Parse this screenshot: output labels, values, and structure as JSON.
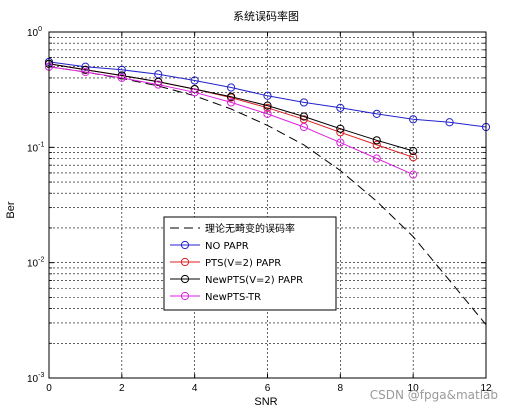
{
  "chart_data": {
    "type": "line",
    "title": "系统误码率图",
    "xlabel": "SNR",
    "ylabel": "Ber",
    "xlim": [
      0,
      12
    ],
    "ylim": [
      0.001,
      1
    ],
    "yscale": "log",
    "grid": true,
    "legend_position": "center",
    "x_ticks": [
      0,
      2,
      4,
      6,
      8,
      10,
      12
    ],
    "x_tick_labels": [
      "0",
      "2",
      "4",
      "6",
      "8",
      "10",
      "12"
    ],
    "y_ticks": [
      0.001,
      0.01,
      0.1,
      1
    ],
    "y_tick_labels": [
      {
        "base": "10",
        "exp": "-3"
      },
      {
        "base": "10",
        "exp": "-2"
      },
      {
        "base": "10",
        "exp": "-1"
      },
      {
        "base": "10",
        "exp": "0"
      }
    ],
    "series": [
      {
        "name": "理论无畸变的误码率",
        "color": "#000000",
        "style": "dashed",
        "marker": "none",
        "x": [
          0,
          1,
          2,
          3,
          4,
          5,
          6,
          7,
          8,
          9,
          10,
          11,
          12
        ],
        "y": [
          0.5,
          0.45,
          0.395,
          0.34,
          0.28,
          0.215,
          0.155,
          0.105,
          0.063,
          0.034,
          0.0168,
          0.007,
          0.0029
        ]
      },
      {
        "name": "NO PAPR",
        "color": "#2222cc",
        "style": "solid",
        "marker": "circle",
        "x": [
          0,
          1,
          2,
          3,
          4,
          5,
          6,
          7,
          8,
          9,
          10,
          11,
          12
        ],
        "y": [
          0.55,
          0.5,
          0.47,
          0.43,
          0.38,
          0.33,
          0.28,
          0.245,
          0.22,
          0.195,
          0.175,
          0.165,
          0.15
        ]
      },
      {
        "name": "PTS(V=2) PAPR",
        "color": "#dd2222",
        "style": "solid",
        "marker": "circle",
        "x": [
          0,
          1,
          2,
          3,
          4,
          5,
          6,
          7,
          8,
          9,
          10
        ],
        "y": [
          0.53,
          0.47,
          0.42,
          0.37,
          0.32,
          0.27,
          0.22,
          0.175,
          0.135,
          0.105,
          0.082
        ]
      },
      {
        "name": "NewPTS(V=2) PAPR",
        "color": "#000000",
        "style": "solid",
        "marker": "circle",
        "x": [
          0,
          1,
          2,
          3,
          4,
          5,
          6,
          7,
          8,
          9,
          10
        ],
        "y": [
          0.53,
          0.47,
          0.42,
          0.37,
          0.32,
          0.275,
          0.23,
          0.185,
          0.145,
          0.115,
          0.093
        ]
      },
      {
        "name": "NewPTS-TR",
        "color": "#dd22dd",
        "style": "solid",
        "marker": "circle",
        "x": [
          0,
          1,
          2,
          3,
          4,
          5,
          6,
          7,
          8,
          9,
          10
        ],
        "y": [
          0.5,
          0.45,
          0.4,
          0.35,
          0.3,
          0.245,
          0.195,
          0.15,
          0.11,
          0.08,
          0.058
        ]
      }
    ]
  },
  "watermark": "CSDN @fpga&matlab"
}
